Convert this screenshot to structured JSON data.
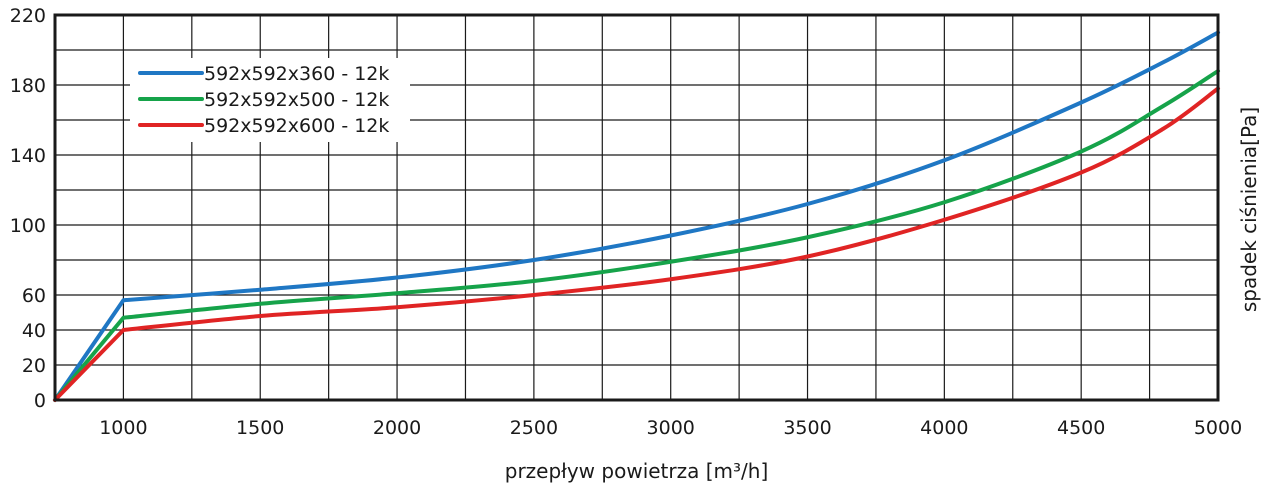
{
  "chart_data": {
    "type": "line",
    "xlabel": "przepływ powietrza [m³/h]",
    "ylabel": "spadek ciśnienia[Pa]",
    "xlim": [
      750,
      5000
    ],
    "ylim": [
      0,
      220
    ],
    "x_ticks": [
      1000,
      1500,
      2000,
      2500,
      3000,
      3500,
      4000,
      4500,
      5000
    ],
    "y_ticks": [
      0,
      20,
      40,
      60,
      80,
      100,
      120,
      140,
      160,
      180,
      200,
      220
    ],
    "y_tick_labels": [
      "0",
      "20",
      "40",
      "60",
      "",
      "100",
      "",
      "140",
      "",
      "180",
      "",
      "220"
    ],
    "legend_position": "top-left",
    "grid": true,
    "series": [
      {
        "name": "592x592x360 - 12k",
        "color": "#1f77c4",
        "x": [
          750,
          1000,
          1500,
          2000,
          2500,
          3000,
          3500,
          4000,
          4500,
          4800,
          5000
        ],
        "y": [
          0,
          57,
          63,
          70,
          80,
          94,
          112,
          137,
          170,
          193,
          210
        ]
      },
      {
        "name": "592x592x500 - 12k",
        "color": "#16a34a",
        "x": [
          750,
          1000,
          1500,
          2000,
          2500,
          3000,
          3500,
          4000,
          4500,
          4800,
          5000
        ],
        "y": [
          0,
          47,
          55,
          61,
          68,
          79,
          93,
          113,
          142,
          168,
          188
        ]
      },
      {
        "name": "592x592x600 - 12k",
        "color": "#e02424",
        "x": [
          750,
          1000,
          1500,
          2000,
          2500,
          3000,
          3500,
          4000,
          4500,
          4800,
          5000
        ],
        "y": [
          0,
          40,
          48,
          53,
          60,
          69,
          82,
          103,
          130,
          155,
          178
        ]
      }
    ]
  }
}
